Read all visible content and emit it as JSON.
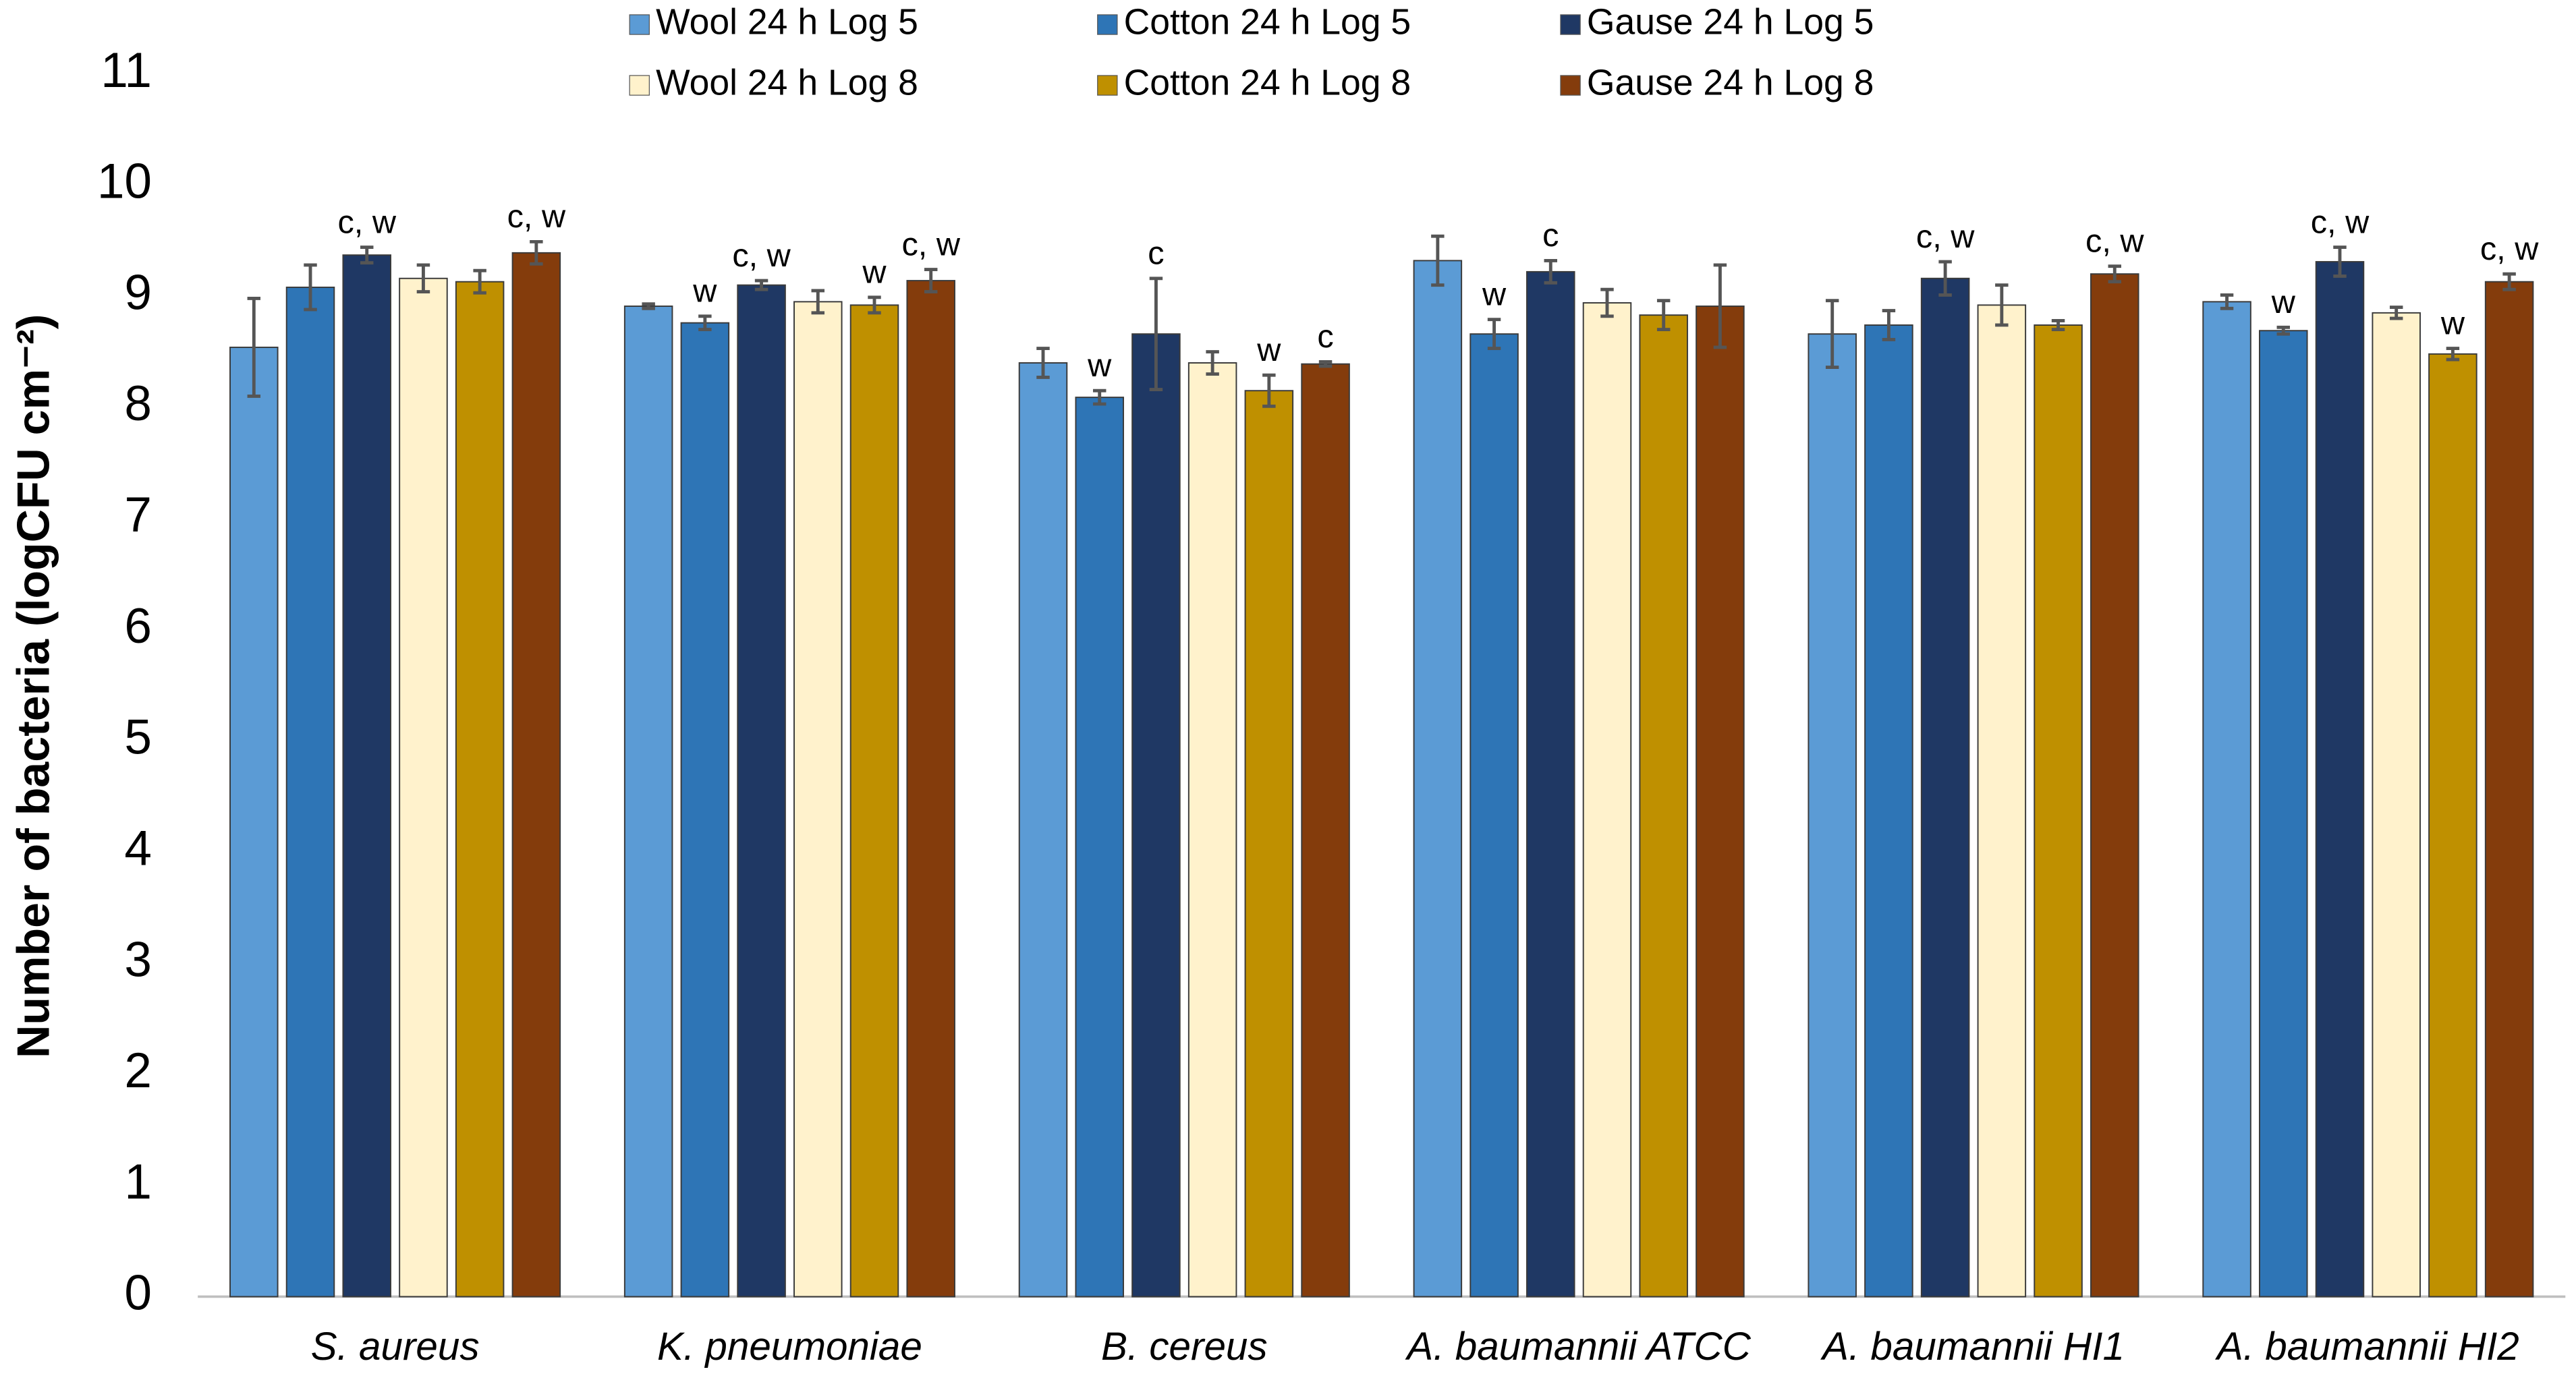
{
  "chart_data": {
    "type": "bar",
    "y_label": "Number of bacteria (logCFU cm⁻²)",
    "categories": [
      "S. aureus",
      "K. pneumoniae",
      "B. cereus",
      "A. baumannii ATCC",
      "A. baumannii HI1",
      "A. baumannii HI2"
    ],
    "ylim": [
      0,
      11
    ],
    "yticks": [
      0,
      1,
      2,
      3,
      4,
      5,
      6,
      7,
      8,
      9,
      10,
      11
    ],
    "grid": false,
    "series": [
      {
        "name": "Wool 24 h Log 5",
        "color": "#5b9bd5",
        "values": [
          8.54,
          8.91,
          8.4,
          9.32,
          8.66,
          8.95
        ],
        "errors": [
          0.44,
          0.02,
          0.13,
          0.22,
          0.3,
          0.06
        ],
        "annotations": [
          null,
          null,
          null,
          null,
          null,
          null
        ]
      },
      {
        "name": "Cotton 24 h Log 5",
        "color": "#2e75b6",
        "values": [
          9.08,
          8.76,
          8.09,
          8.66,
          8.74,
          8.69
        ],
        "errors": [
          0.2,
          0.06,
          0.06,
          0.13,
          0.13,
          0.03
        ],
        "annotations": [
          null,
          "w",
          "w",
          "w",
          null,
          "w"
        ]
      },
      {
        "name": "Gause 24 h Log 5",
        "color": "#1f3864",
        "values": [
          9.37,
          9.1,
          8.66,
          9.22,
          9.16,
          9.31
        ],
        "errors": [
          0.07,
          0.04,
          0.5,
          0.1,
          0.15,
          0.13
        ],
        "annotations": [
          "c, w",
          "c, w",
          "c",
          "c",
          "c, w",
          "c, w"
        ]
      },
      {
        "name": "Wool 24 h Log 8",
        "color": "#fff2cc",
        "values": [
          9.16,
          8.95,
          8.4,
          8.94,
          8.92,
          8.85
        ],
        "errors": [
          0.12,
          0.1,
          0.1,
          0.12,
          0.18,
          0.05
        ],
        "annotations": [
          null,
          null,
          null,
          null,
          null,
          null
        ]
      },
      {
        "name": "Cotton 24 h Log 8",
        "color": "#bf9000",
        "values": [
          9.13,
          8.92,
          8.15,
          8.83,
          8.74,
          8.48
        ],
        "errors": [
          0.1,
          0.07,
          0.14,
          0.13,
          0.04,
          0.05
        ],
        "annotations": [
          null,
          "w",
          "w",
          null,
          null,
          "w"
        ]
      },
      {
        "name": "Gause 24 h Log 8",
        "color": "#843c0c",
        "values": [
          9.39,
          9.14,
          8.39,
          8.91,
          9.2,
          9.13
        ],
        "errors": [
          0.1,
          0.1,
          0.02,
          0.37,
          0.07,
          0.07
        ],
        "annotations": [
          "c, w",
          "c, w",
          "c",
          null,
          "c, w",
          "c, w"
        ]
      }
    ]
  }
}
